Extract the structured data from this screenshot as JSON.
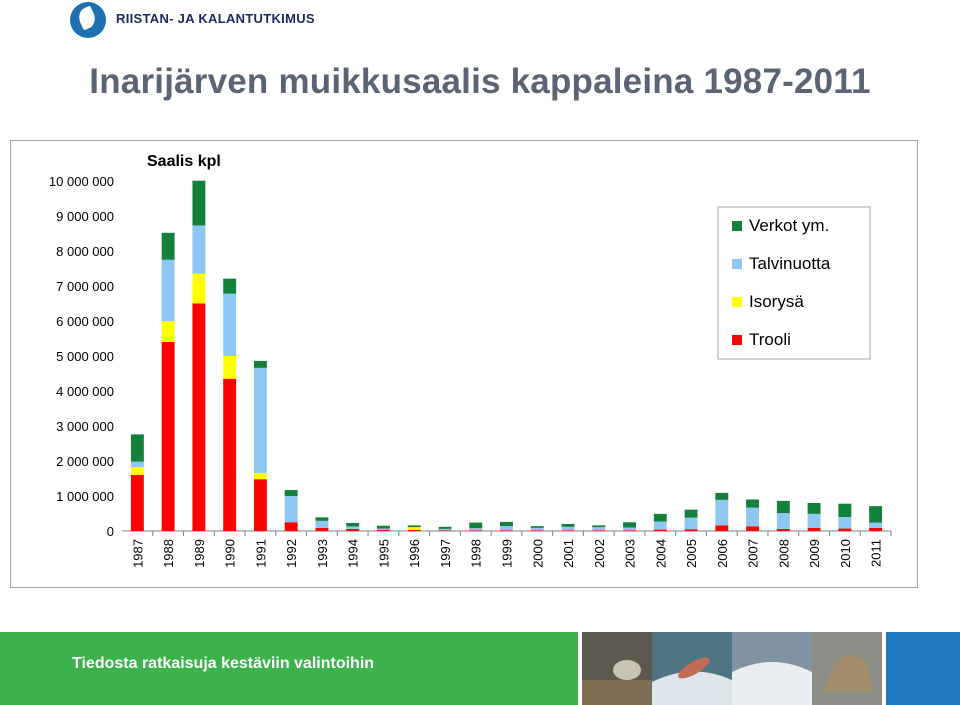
{
  "header": {
    "org_name": "RIISTAN- JA KALANTUTKIMUS",
    "title": "Inarijärven muikkusaalis kappaleina 1987-2011"
  },
  "footer": {
    "slogan": "Tiedosta ratkaisuja kestäviin valintoihin"
  },
  "chart_data": {
    "type": "bar",
    "stacked": true,
    "title": "Saalis kpl",
    "xlabel": "",
    "ylabel": "",
    "ylim": [
      0,
      10000000
    ],
    "yticks": [
      0,
      1000000,
      2000000,
      3000000,
      4000000,
      5000000,
      6000000,
      7000000,
      8000000,
      9000000,
      10000000
    ],
    "ytick_labels": [
      "0",
      "1 000 000",
      "2 000 000",
      "3 000 000",
      "4 000 000",
      "5 000 000",
      "6 000 000",
      "7 000 000",
      "8 000 000",
      "9 000 000",
      "10 000 000"
    ],
    "categories": [
      "1987",
      "1988",
      "1989",
      "1990",
      "1991",
      "1992",
      "1993",
      "1994",
      "1995",
      "1996",
      "1997",
      "1998",
      "1999",
      "2000",
      "2001",
      "2002",
      "2003",
      "2004",
      "2005",
      "2006",
      "2007",
      "2008",
      "2009",
      "2010",
      "2011"
    ],
    "legend_position": "top-right",
    "grid": false,
    "series": [
      {
        "name": "Trooli",
        "color": "#ff0000",
        "values": [
          1600000,
          5400000,
          6500000,
          4350000,
          1480000,
          250000,
          90000,
          60000,
          30000,
          30000,
          20000,
          20000,
          20000,
          20000,
          20000,
          20000,
          20000,
          40000,
          50000,
          160000,
          130000,
          60000,
          90000,
          70000,
          90000
        ]
      },
      {
        "name": "Isorysä",
        "color": "#ffff00",
        "values": [
          230000,
          600000,
          850000,
          650000,
          180000,
          0,
          0,
          0,
          0,
          80000,
          0,
          0,
          0,
          0,
          0,
          0,
          0,
          0,
          0,
          0,
          0,
          0,
          0,
          0,
          0
        ]
      },
      {
        "name": "Talvinuotta",
        "color": "#8ec8f2",
        "values": [
          150000,
          1750000,
          1380000,
          1780000,
          3000000,
          750000,
          200000,
          70000,
          40000,
          0,
          40000,
          60000,
          120000,
          70000,
          100000,
          90000,
          80000,
          230000,
          330000,
          730000,
          540000,
          450000,
          400000,
          330000,
          150000
        ]
      },
      {
        "name": "Verkot ym.",
        "color": "#13803b",
        "values": [
          780000,
          770000,
          1280000,
          430000,
          200000,
          170000,
          100000,
          100000,
          80000,
          50000,
          60000,
          160000,
          120000,
          50000,
          80000,
          50000,
          150000,
          220000,
          230000,
          200000,
          230000,
          350000,
          310000,
          380000,
          470000
        ]
      }
    ]
  }
}
